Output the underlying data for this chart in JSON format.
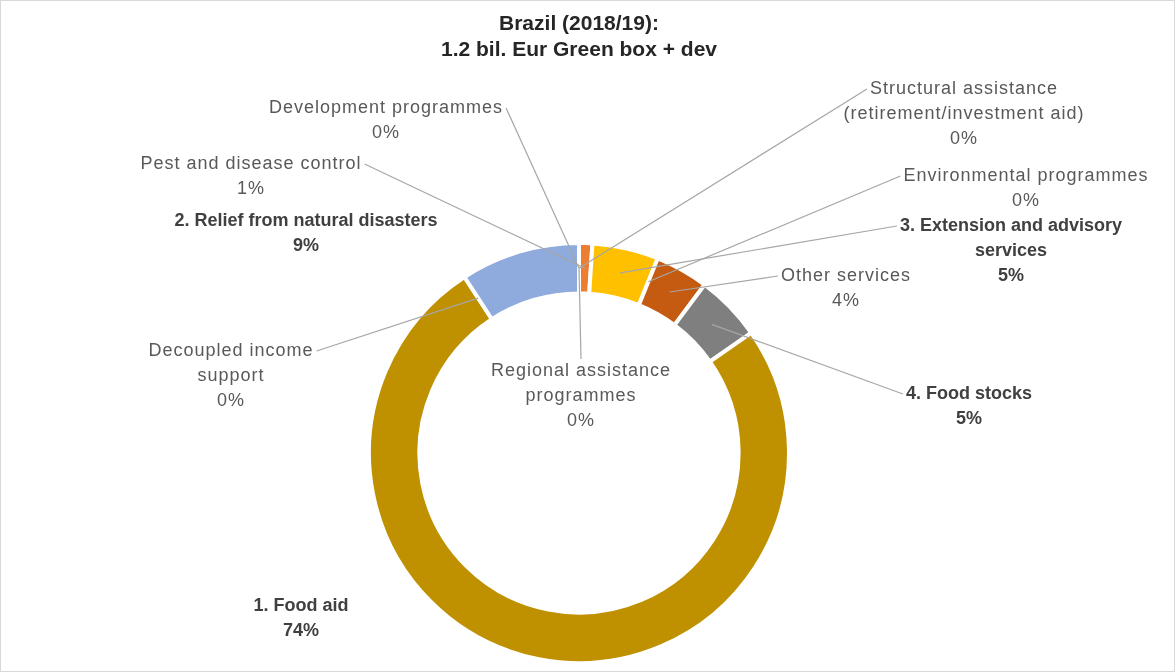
{
  "chart_data": {
    "type": "donut",
    "title": "Brazil (2018/19):",
    "subtitle": "1.2 bil. Eur Green box + dev",
    "categories": [
      "Development programmes",
      "Regional assistance programmes",
      "Structural assistance (retirement/investment aid)",
      "Pest and disease control",
      "3. Extension and advisory services",
      "Environmental programmes",
      "Other services",
      "4. Food stocks",
      "1. Food aid",
      "Decoupled income support",
      "2. Relief from natural disasters"
    ],
    "values": [
      0,
      0,
      0,
      1,
      5,
      0,
      4,
      5,
      74,
      0,
      9
    ],
    "value_labels": [
      "0%",
      "0%",
      "0%",
      "1%",
      "5%",
      "0%",
      "4%",
      "5%",
      "74%",
      "0%",
      "9%"
    ],
    "colors": [
      "#70ad47",
      "#5b9bd5",
      "#a9d18e",
      "#ed7d31",
      "#ffc000",
      "#2f5597",
      "#c55a11",
      "#7f7f7f",
      "#bf9000",
      "#a5a5a5",
      "#8faadc"
    ],
    "legend": false
  }
}
